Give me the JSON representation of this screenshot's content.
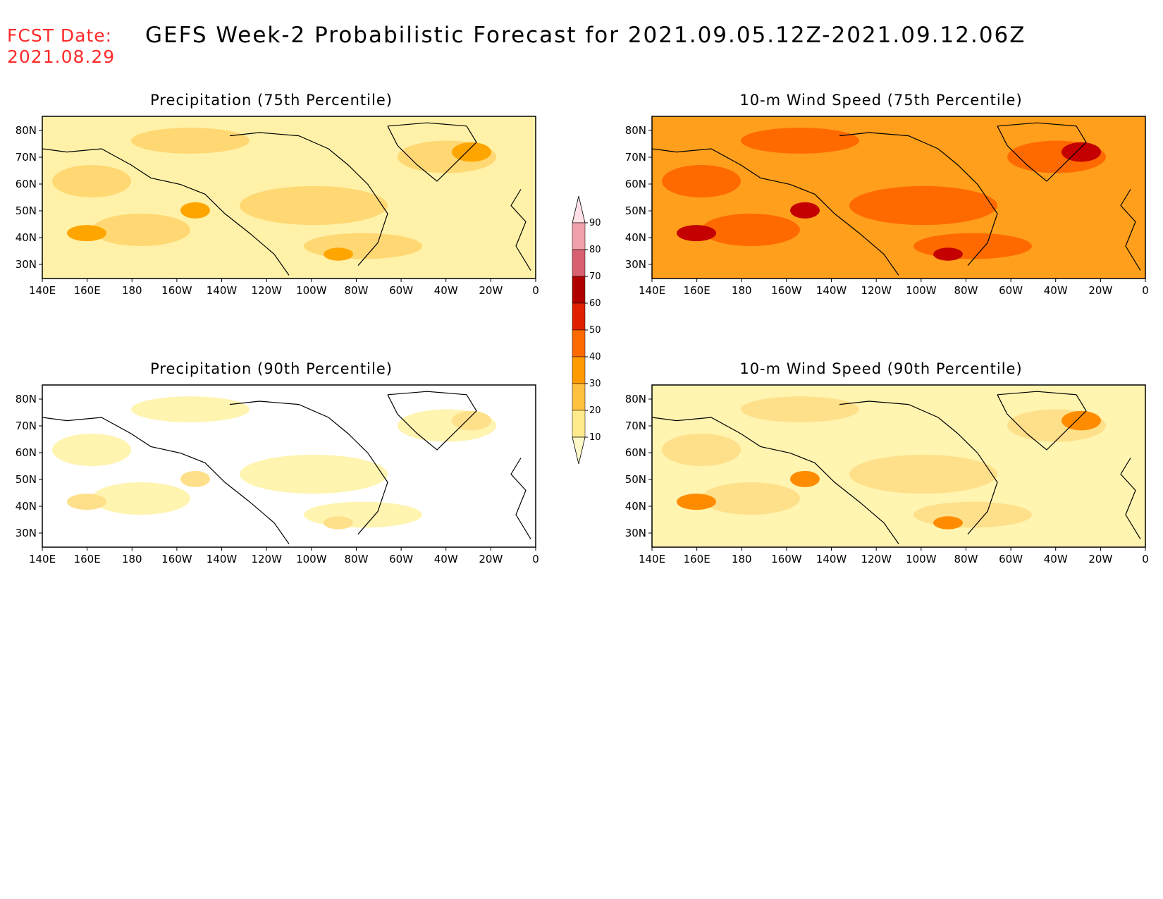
{
  "header": {
    "fcst_label": "FCST Date:",
    "fcst_date": "2021.08.29",
    "title": "GEFS Week-2 Probabilistic Forecast for 2021.09.05.12Z-2021.09.12.06Z"
  },
  "lat_labels": [
    "80N",
    "70N",
    "60N",
    "50N",
    "40N",
    "30N"
  ],
  "lon_labels": [
    "140E",
    "160E",
    "180",
    "160W",
    "140W",
    "120W",
    "100W",
    "80W",
    "60W",
    "40W",
    "20W",
    "0"
  ],
  "panels": [
    {
      "id": "precip75",
      "title": "Precipitation (75th Percentile)",
      "base": "#fff2a8",
      "accent": "#ffd874",
      "hot": "#ffa500"
    },
    {
      "id": "wind75",
      "title": "10-m Wind Speed (75th Percentile)",
      "base": "#ff9f1c",
      "accent": "#ff6a00",
      "hot": "#c40000"
    },
    {
      "id": "precip90",
      "title": "Precipitation (90th Percentile)",
      "base": "#ffffff",
      "accent": "#fff4b0",
      "hot": "#ffe08a"
    },
    {
      "id": "wind90",
      "title": "10-m Wind Speed (90th Percentile)",
      "base": "#fff4b0",
      "accent": "#ffe08a",
      "hot": "#ff8c00"
    }
  ],
  "colorbar": {
    "levels": [
      "10",
      "20",
      "30",
      "40",
      "50",
      "60",
      "70",
      "80",
      "90"
    ],
    "colors": [
      "#fff8c8",
      "#ffeb8c",
      "#ffc040",
      "#ff9a00",
      "#ff6a00",
      "#e02000",
      "#b00000",
      "#d86070",
      "#f0a0aa",
      "#ffe0e6"
    ]
  }
}
